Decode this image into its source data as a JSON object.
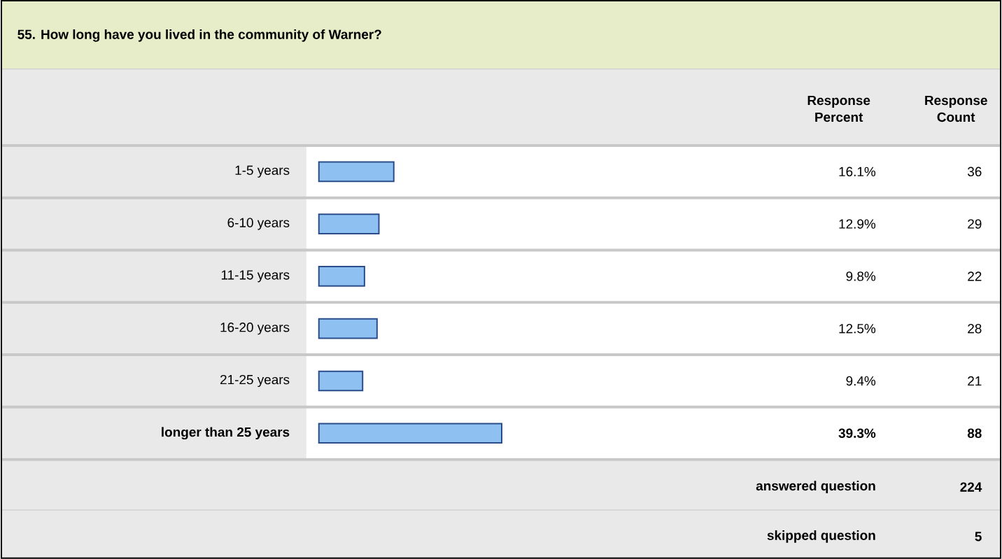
{
  "chart_data": {
    "type": "bar",
    "orientation": "horizontal",
    "title": "55. How long have you lived in the community of Warner?",
    "categories": [
      "1-5 years",
      "6-10 years",
      "11-15 years",
      "16-20 years",
      "21-25 years",
      "longer than 25 years"
    ],
    "values": [
      16.1,
      12.9,
      9.8,
      12.5,
      9.4,
      39.3
    ],
    "value_labels": [
      "16.1%",
      "12.9%",
      "9.8%",
      "12.5%",
      "9.4%",
      "39.3%"
    ],
    "color": "#8ec1f2",
    "annotations": [
      "Response Percent",
      "Response Count",
      "36",
      "29",
      "22",
      "28",
      "21",
      "88",
      "answered question",
      "224",
      "skipped question",
      "5"
    ]
  }
}
